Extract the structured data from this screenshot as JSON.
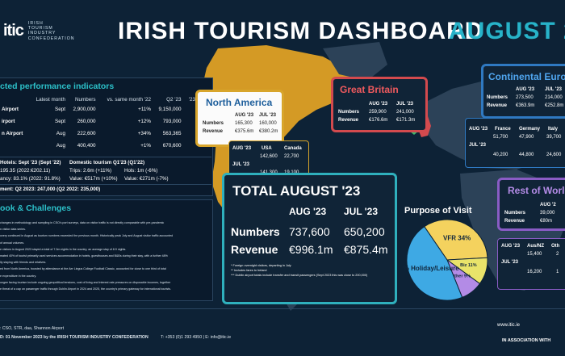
{
  "header": {
    "logo_mark": "itic",
    "logo_lines": [
      "IRISH",
      "TOURISM",
      "INDUSTRY",
      "CONFEDERATION"
    ],
    "title": "IRISH TOURISM DASHBOARD",
    "month": "AUGUST 20"
  },
  "kpi": {
    "title": "cted performance indicators",
    "columns": [
      "",
      "Latest month",
      "Numbers",
      "vs. same month '22",
      "Q2 '23",
      "'23 vs '19"
    ],
    "rows": [
      {
        "label": "Airport",
        "month": "Sept",
        "numbers": "2,900,000",
        "vs": "+11%",
        "q2": "9,150,000",
        "vs19": "+1%"
      },
      {
        "label": "irport",
        "month": "Sept",
        "numbers": "260,000",
        "vs": "+12%",
        "q2": "793,000",
        "vs19": "+8.6%"
      },
      {
        "label": "n Airport",
        "month": "Aug",
        "numbers": "222,600",
        "vs": "+34%",
        "q2": "563,365",
        "vs19": "+16%"
      },
      {
        "label": "",
        "month": "Aug",
        "numbers": "400,400",
        "vs": "+1%",
        "q2": "670,600",
        "vs19": "-5%"
      }
    ],
    "hotels_label": "Hotels: Sept '23 (Sept '22)",
    "hotels_rate": "195.35 (2022:€202.11)",
    "occupancy": "ancy: 83.1% (2022: 91.8%)",
    "domestic_label": "Domestic tourism Q1'23 (Q1'22)",
    "trips": "Trips: 2.6m (+11%)",
    "hols": "Hols: 1m (-6%)",
    "value": "Value: €517m (+10%)",
    "hols_value": "Value: €271m (-7%)",
    "employment": "ment: Q2 2023: 247,000 (Q2 2022: 235,000)"
  },
  "outlook": {
    "title": "ook & Challenges",
    "paragraphs": [
      "changes in methodology and sampling in CSO's port surveys, data on visitor traffic is not directly comparable with pre-pandemic",
      "n visitor data series.",
      "overy continued in August as tourism numbers exceeded the previous month. Historically peak July and August visitor traffic accounted",
      "of annual volumes.",
      "e visitors in August 2023 stayed a total of 7.3m nights in the country, an average stay of 8.9 nights.",
      "mated 40% of tourist primarily used services accommodation in hotels, guesthouses and B&Bs during their stay, with a further 48%",
      "lly staying with friends and relatives.",
      "ed from North America, boosted by attendance at the Aer Lingus College Football Classic, accounted for close to one third of total",
      "e expenditure in the country.",
      "ongee facing tourism include ongoing geopolitical tensions, cost of living and interest rate pressures on disposable incomes, together",
      "e threat of a cap on passenger traffic through Dublin Airport in 2024 and 2025, the country's primary gateway for international tourists."
    ]
  },
  "north_america": {
    "title": "North America",
    "cols": [
      "AUG '23",
      "JUL '23"
    ],
    "numbers_label": "Numbers",
    "revenue_label": "Revenue",
    "numbers": [
      "165,300",
      "160,000"
    ],
    "revenue": [
      "€375.6m",
      "€380.2m"
    ],
    "sub_cols": [
      "AUG '23",
      "USA",
      "Canada"
    ],
    "sub_aug": [
      "142,600",
      "22,700"
    ],
    "sub_jul_label": "JUL '23",
    "sub_jul": [
      "141,300",
      "19,100"
    ]
  },
  "great_britain": {
    "title": "Great Britain",
    "cols": [
      "AUG '23",
      "JUL '23"
    ],
    "numbers_label": "Numbers",
    "revenue_label": "Revenue",
    "numbers": [
      "259,900",
      "241,000"
    ],
    "revenue": [
      "€176.6m",
      "€171.3m"
    ]
  },
  "continental_europe": {
    "title": "Continental Europe",
    "cols": [
      "AUG '23",
      "JUL '23"
    ],
    "numbers_label": "Numbers",
    "revenue_label": "Revenue",
    "numbers": [
      "273,500",
      "214,000"
    ],
    "revenue": [
      "€363.9m",
      "€252.8m"
    ],
    "sub_cols": [
      "AUG '23",
      "France",
      "Germany",
      "Italy"
    ],
    "sub_aug": [
      "51,700",
      "47,900",
      "39,700"
    ],
    "sub_jul_label": "JUL '23",
    "sub_jul": [
      "40,200",
      "44,800",
      "24,600"
    ]
  },
  "total": {
    "title": "TOTAL AUGUST '23",
    "cols": [
      "AUG '23",
      "JUL '23"
    ],
    "numbers_label": "Numbers",
    "revenue_label": "Revenue",
    "numbers": [
      "737,600",
      "650,200"
    ],
    "revenue": [
      "€996.1m",
      "€875.4m"
    ],
    "notes": [
      "* Foreign overnight visitors, departing in July",
      "** Includes fares to Ireland",
      "*** Dublin airport totals include transfer and transit passengers (Sept 2023 this was close to 200,000)"
    ]
  },
  "purpose": {
    "title": "Purpose of Visit",
    "slices": [
      {
        "label": "VFR 34%",
        "value": 34,
        "color": "#f4d25e"
      },
      {
        "label": "Biz 11%",
        "value": 11,
        "color": "#e9e36a"
      },
      {
        "label": "Other 9%",
        "value": 9,
        "color": "#b38be6"
      },
      {
        "label": "47% Holiday/Leisure",
        "value": 47,
        "color": "#3ea9e4"
      }
    ]
  },
  "rest_of_world": {
    "title": "Rest of World",
    "col": "AUG '2",
    "numbers_label": "Numbers",
    "revenue_label": "Revenue",
    "numbers": "39,000",
    "revenue": "€80m",
    "sub_cols": [
      "AUG '23",
      "Aus/NZ",
      "Oth"
    ],
    "sub_aug": [
      "15,400",
      "2"
    ],
    "sub_jul_label": "JUL '23",
    "sub_jul": [
      "16,200",
      "1"
    ]
  },
  "footer": {
    "sources": ": CSO, STR, daa, Shannon Airport",
    "published": "D: 01 November 2023 by the IRISH TOURISM INDUSTRY CONFEDERATION",
    "contact": "T: +353 (0)1 293 4950 | E: info@itic.ie",
    "url": "www.itic.ie",
    "assoc": "IN ASSOCIATION WITH"
  },
  "colors": {
    "background": "#0d2236",
    "accent_teal": "#27b3c9",
    "north_america": "#d8a52b",
    "great_britain": "#d34a4e",
    "continental_europe": "#2f79c1",
    "rest_of_world": "#8a5cc5"
  }
}
